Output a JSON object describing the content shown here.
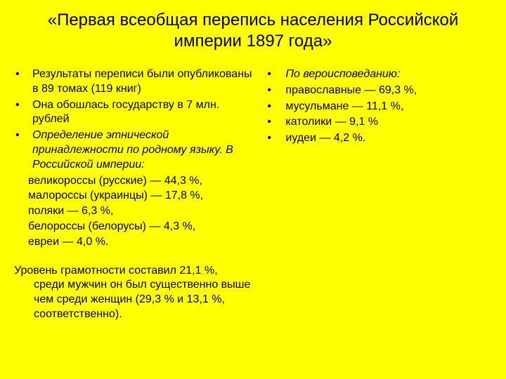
{
  "title": "«Первая всеобщая перепись населения Российской империи 1897 года»",
  "left": {
    "items": [
      {
        "text": "Результаты переписи были опубликованы в 89 томах (119 книг)",
        "italic": false
      },
      {
        "text": "Она обошлась государству в 7 млн. рублей",
        "italic": false
      },
      {
        "text": "Определение этнической принадлежности по родному языку. В Российской империи:",
        "italic": true
      }
    ],
    "sublines": [
      "великороссы (русские) — 44,3 %,",
      "малороссы (украинцы) — 17,8 %,",
      "поляки — 6,3 %,",
      "белороссы (белорусы) — 4,3 %,",
      "евреи — 4,0 %."
    ],
    "literacy_first": "Уровень грамотности составил 21,1 %,",
    "literacy_rest": "среди мужчин он был существенно выше чем среди женщин (29,3 % и 13,1 %, соответственно)."
  },
  "right": {
    "items": [
      {
        "text": "По вероисповеданию:",
        "italic": true,
        "pad": ""
      },
      {
        "text": "православные — 69,3 %,",
        "italic": false,
        "pad": ""
      },
      {
        "text": "мусульмане — 11,1 %,",
        "italic": false,
        "pad": ""
      },
      {
        "text": "католики — 9,1 %",
        "italic": false,
        "pad": "pad1"
      },
      {
        "text": "иудеи — 4,2 %.",
        "italic": false,
        "pad": "pad2"
      }
    ]
  }
}
